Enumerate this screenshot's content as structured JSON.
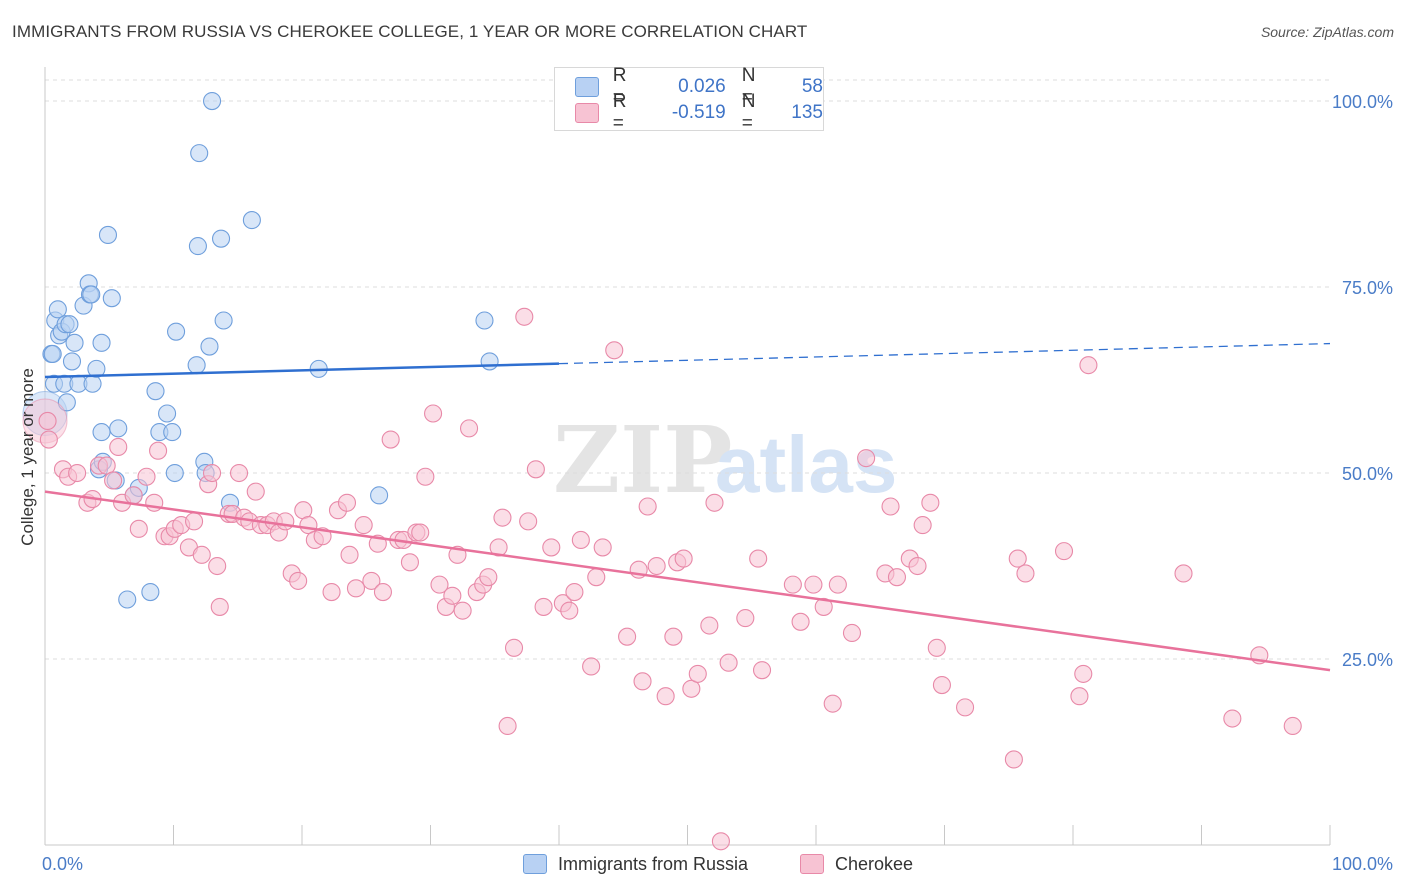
{
  "title": "IMMIGRANTS FROM RUSSIA VS CHEROKEE COLLEGE, 1 YEAR OR MORE CORRELATION CHART",
  "source": "Source: ZipAtlas.com",
  "watermark": {
    "zip": "ZIP",
    "atlas": "atlas"
  },
  "colors": {
    "blue_fill": "#b8d1f3",
    "blue_stroke": "#6f9fdc",
    "blue_line": "#2f6fd0",
    "pink_fill": "#f7c3d3",
    "pink_stroke": "#e889a8",
    "pink_line": "#e8729b",
    "tick_text": "#4a7cc7",
    "grid": "#dddddd"
  },
  "legend_box": {
    "rows": [
      {
        "series": "blue",
        "r_label": "R =",
        "r_value": "0.026",
        "n_label": "N =",
        "n_value": "58"
      },
      {
        "series": "pink",
        "r_label": "R =",
        "r_value": "-0.519",
        "n_label": "N =",
        "n_value": "135"
      }
    ]
  },
  "chart_data": {
    "type": "scatter",
    "xlabel": "",
    "ylabel": "College, 1 year or more",
    "xlim": [
      0,
      100
    ],
    "ylim": [
      0,
      103.5
    ],
    "x_tick_labels": [
      "0.0%",
      "100.0%"
    ],
    "y_ticks": [
      25,
      50,
      75,
      100
    ],
    "y_tick_labels": [
      "25.0%",
      "50.0%",
      "75.0%",
      "100.0%"
    ],
    "grid": "horizontal dashed",
    "legend_placement": "bottom-center",
    "series": [
      {
        "name": "Immigrants from Russia",
        "color": "blue",
        "trend": {
          "x0": 0,
          "y0": 62.9,
          "x1": 100,
          "y1": 67.4,
          "solid_until": 40
        },
        "points": [
          [
            0.5,
            66
          ],
          [
            0.6,
            66
          ],
          [
            0.7,
            62
          ],
          [
            0.8,
            70.5
          ],
          [
            1,
            72
          ],
          [
            1.1,
            68.5
          ],
          [
            1.3,
            69
          ],
          [
            1.5,
            62
          ],
          [
            1.6,
            70
          ],
          [
            1.7,
            59.5
          ],
          [
            1.9,
            70
          ],
          [
            2.1,
            65
          ],
          [
            2.3,
            67.5
          ],
          [
            2.6,
            62
          ],
          [
            3,
            72.5
          ],
          [
            3.4,
            75.5
          ],
          [
            3.5,
            74
          ],
          [
            3.6,
            74
          ],
          [
            3.7,
            62
          ],
          [
            4,
            64
          ],
          [
            4.2,
            50.5
          ],
          [
            4.4,
            55.5
          ],
          [
            4.4,
            67.5
          ],
          [
            4.5,
            51.5
          ],
          [
            4.9,
            82
          ],
          [
            5.2,
            73.5
          ],
          [
            5.5,
            49
          ],
          [
            5.7,
            56
          ],
          [
            6.4,
            33
          ],
          [
            6.9,
            47
          ],
          [
            7.3,
            48
          ],
          [
            8.2,
            34
          ],
          [
            8.6,
            61
          ],
          [
            8.9,
            55.5
          ],
          [
            9.5,
            58
          ],
          [
            9.9,
            55.5
          ],
          [
            10.1,
            50
          ],
          [
            10.2,
            69
          ],
          [
            11.8,
            64.5
          ],
          [
            11.9,
            80.5
          ],
          [
            12,
            93
          ],
          [
            12.4,
            51.5
          ],
          [
            12.5,
            50
          ],
          [
            12.8,
            67
          ],
          [
            13,
            100
          ],
          [
            13.7,
            81.5
          ],
          [
            13.9,
            70.5
          ],
          [
            14.4,
            46
          ],
          [
            16.1,
            84
          ],
          [
            21.3,
            64
          ],
          [
            26,
            47
          ],
          [
            34.2,
            70.5
          ],
          [
            34.6,
            65
          ]
        ],
        "big_point": [
          0,
          58
        ]
      },
      {
        "name": "Cherokee",
        "color": "pink",
        "trend": {
          "x0": 0,
          "y0": 47.5,
          "x1": 100,
          "y1": 23.5
        },
        "points": [
          [
            0.2,
            57
          ],
          [
            0.3,
            54.5
          ],
          [
            1.4,
            50.5
          ],
          [
            1.8,
            49.5
          ],
          [
            2.5,
            50
          ],
          [
            3.3,
            46
          ],
          [
            3.7,
            46.5
          ],
          [
            4.2,
            51
          ],
          [
            4.8,
            51
          ],
          [
            5.3,
            49
          ],
          [
            5.7,
            53.5
          ],
          [
            6,
            46
          ],
          [
            6.9,
            47
          ],
          [
            7.3,
            42.5
          ],
          [
            7.9,
            49.5
          ],
          [
            8.5,
            46
          ],
          [
            8.8,
            53
          ],
          [
            9.3,
            41.5
          ],
          [
            9.7,
            41.5
          ],
          [
            10.1,
            42.5
          ],
          [
            10.6,
            43
          ],
          [
            11.2,
            40
          ],
          [
            11.6,
            43.5
          ],
          [
            12.2,
            39
          ],
          [
            12.7,
            48.5
          ],
          [
            13,
            50
          ],
          [
            13.4,
            37.5
          ],
          [
            13.6,
            32
          ],
          [
            14.3,
            44.5
          ],
          [
            14.6,
            44.5
          ],
          [
            15.1,
            50
          ],
          [
            15.5,
            44
          ],
          [
            15.9,
            43.5
          ],
          [
            16.4,
            47.5
          ],
          [
            16.8,
            43
          ],
          [
            17.3,
            43
          ],
          [
            17.8,
            43.5
          ],
          [
            18.2,
            42
          ],
          [
            18.7,
            43.5
          ],
          [
            19.2,
            36.5
          ],
          [
            19.7,
            35.5
          ],
          [
            20.1,
            45
          ],
          [
            20.5,
            43
          ],
          [
            21,
            41
          ],
          [
            21.6,
            41.5
          ],
          [
            22.3,
            34
          ],
          [
            22.8,
            45
          ],
          [
            23.5,
            46
          ],
          [
            23.7,
            39
          ],
          [
            24.2,
            34.5
          ],
          [
            24.8,
            43
          ],
          [
            25.4,
            35.5
          ],
          [
            25.9,
            40.5
          ],
          [
            26.3,
            34
          ],
          [
            26.9,
            54.5
          ],
          [
            27.5,
            41
          ],
          [
            27.9,
            41
          ],
          [
            28.4,
            38
          ],
          [
            28.9,
            42
          ],
          [
            29.2,
            42
          ],
          [
            29.6,
            49.5
          ],
          [
            30.2,
            58
          ],
          [
            30.7,
            35
          ],
          [
            31.2,
            32
          ],
          [
            31.7,
            33.5
          ],
          [
            32.1,
            39
          ],
          [
            32.5,
            31.5
          ],
          [
            33,
            56
          ],
          [
            33.6,
            34
          ],
          [
            34.1,
            35
          ],
          [
            34.5,
            36
          ],
          [
            35.3,
            40
          ],
          [
            35.6,
            44
          ],
          [
            36,
            16
          ],
          [
            36.5,
            26.5
          ],
          [
            37.3,
            71
          ],
          [
            37.6,
            43.5
          ],
          [
            38.2,
            50.5
          ],
          [
            38.8,
            32
          ],
          [
            39.4,
            40
          ],
          [
            40.3,
            32.5
          ],
          [
            40.8,
            31.5
          ],
          [
            41.2,
            34
          ],
          [
            41.7,
            41
          ],
          [
            42.5,
            24
          ],
          [
            42.9,
            36
          ],
          [
            43.4,
            40
          ],
          [
            44.3,
            66.5
          ],
          [
            45.3,
            28
          ],
          [
            46.2,
            37
          ],
          [
            46.5,
            22
          ],
          [
            46.9,
            45.5
          ],
          [
            47.6,
            37.5
          ],
          [
            48.3,
            20
          ],
          [
            48.9,
            28
          ],
          [
            49.2,
            38
          ],
          [
            49.7,
            38.5
          ],
          [
            50.3,
            21
          ],
          [
            50.8,
            23
          ],
          [
            51.7,
            29.5
          ],
          [
            52.1,
            46
          ],
          [
            52.6,
            0.5
          ],
          [
            53.2,
            24.5
          ],
          [
            54.5,
            30.5
          ],
          [
            55.5,
            38.5
          ],
          [
            55.8,
            23.5
          ],
          [
            58.2,
            35
          ],
          [
            58.8,
            30
          ],
          [
            59.8,
            35
          ],
          [
            60.6,
            32
          ],
          [
            61.3,
            19
          ],
          [
            61.7,
            35
          ],
          [
            62.8,
            28.5
          ],
          [
            63.9,
            52
          ],
          [
            65.4,
            36.5
          ],
          [
            65.8,
            45.5
          ],
          [
            66.3,
            36
          ],
          [
            67.3,
            38.5
          ],
          [
            67.9,
            37.5
          ],
          [
            68.3,
            43
          ],
          [
            68.9,
            46
          ],
          [
            69.4,
            26.5
          ],
          [
            69.8,
            21.5
          ],
          [
            71.6,
            18.5
          ],
          [
            75.4,
            11.5
          ],
          [
            75.7,
            38.5
          ],
          [
            76.3,
            36.5
          ],
          [
            79.3,
            39.5
          ],
          [
            80.5,
            20
          ],
          [
            80.8,
            23
          ],
          [
            81.2,
            64.5
          ],
          [
            88.6,
            36.5
          ],
          [
            92.4,
            17
          ],
          [
            94.5,
            25.5
          ],
          [
            97.1,
            16
          ]
        ],
        "big_point": [
          0,
          57
        ]
      }
    ]
  }
}
